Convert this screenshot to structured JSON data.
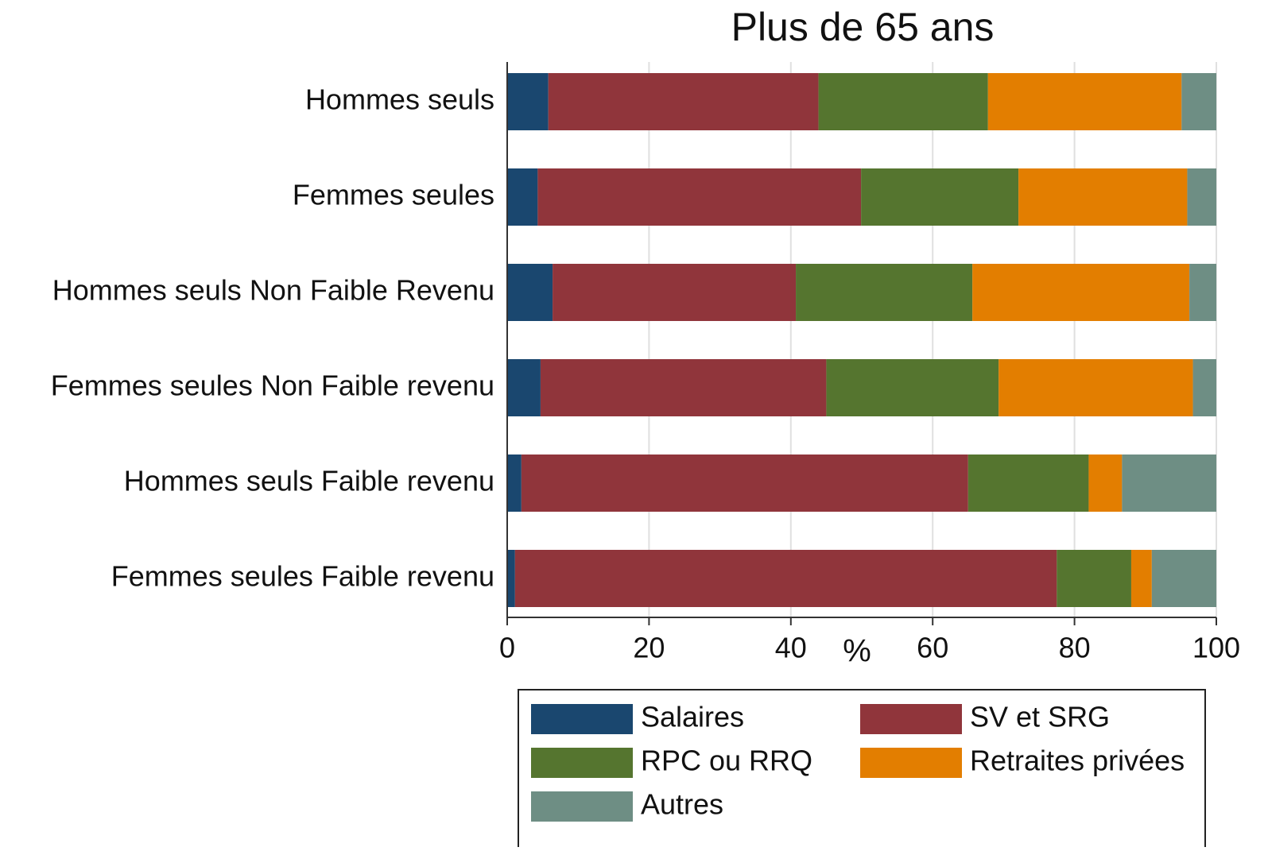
{
  "chart_data": {
    "type": "stacked-barh",
    "title": "Plus de 65 ans",
    "xlabel": "%",
    "categories": [
      "Hommes seuls",
      "Femmes seules",
      "Hommes seuls Non Faible Revenu",
      "Femmes seules Non Faible revenu",
      "Hommes seuls Faible revenu",
      "Femmes seules Faible revenu"
    ],
    "series": [
      {
        "name": "Salaires",
        "color": "#1a476f",
        "values": [
          5.8,
          4.3,
          6.4,
          4.7,
          2.0,
          1.1
        ]
      },
      {
        "name": "SV et SRG",
        "color": "#90353b",
        "values": [
          38.1,
          45.6,
          34.3,
          40.3,
          63.0,
          76.4
        ]
      },
      {
        "name": "RPC ou RRQ",
        "color": "#55752f",
        "values": [
          23.9,
          22.2,
          24.9,
          24.3,
          17.0,
          10.5
        ]
      },
      {
        "name": "Retraites privées",
        "color": "#e37e00",
        "values": [
          27.3,
          23.8,
          30.6,
          27.4,
          4.7,
          2.9
        ]
      },
      {
        "name": "Autres",
        "color": "#6e8e84",
        "values": [
          4.9,
          4.1,
          3.8,
          3.3,
          13.3,
          9.1
        ]
      }
    ],
    "xlim": [
      0,
      100
    ],
    "xticks": [
      0,
      20,
      40,
      60,
      80,
      100
    ],
    "grid": true,
    "legend": "bottom"
  }
}
